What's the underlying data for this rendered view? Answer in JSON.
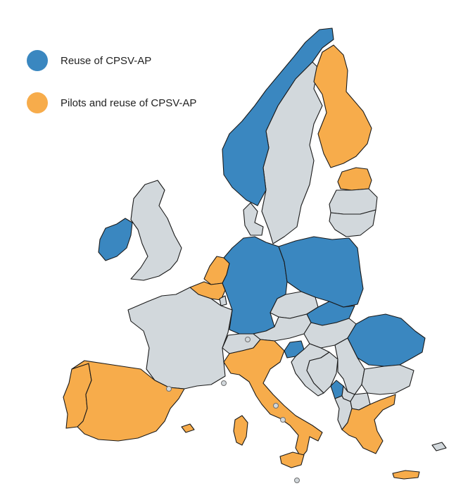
{
  "colors": {
    "reuse": "#3a87c0",
    "pilots": "#f7ac4b",
    "other": "#d2d8dc",
    "border": "#1a1a1a"
  },
  "legend": {
    "items": [
      {
        "key": "reuse",
        "label": "Reuse of CPSV-AP"
      },
      {
        "key": "pilots",
        "label": "Pilots and reuse of CPSV-AP"
      }
    ]
  },
  "regions": {
    "reuse": [
      "Ireland",
      "Norway",
      "Germany",
      "Poland",
      "Slovakia",
      "Romania",
      "Slovenia",
      "Montenegro"
    ],
    "pilots": [
      "Portugal",
      "Spain",
      "Italy",
      "Greece",
      "Belgium",
      "Netherlands",
      "Finland",
      "Estonia"
    ],
    "other": [
      "United Kingdom",
      "France",
      "Switzerland",
      "Austria",
      "Czechia",
      "Hungary",
      "Croatia",
      "Bosnia and Herzegovina",
      "Serbia",
      "Bulgaria",
      "North Macedonia",
      "Albania",
      "Kosovo",
      "Denmark",
      "Sweden",
      "Latvia",
      "Lithuania",
      "Luxembourg",
      "Cyprus"
    ]
  }
}
